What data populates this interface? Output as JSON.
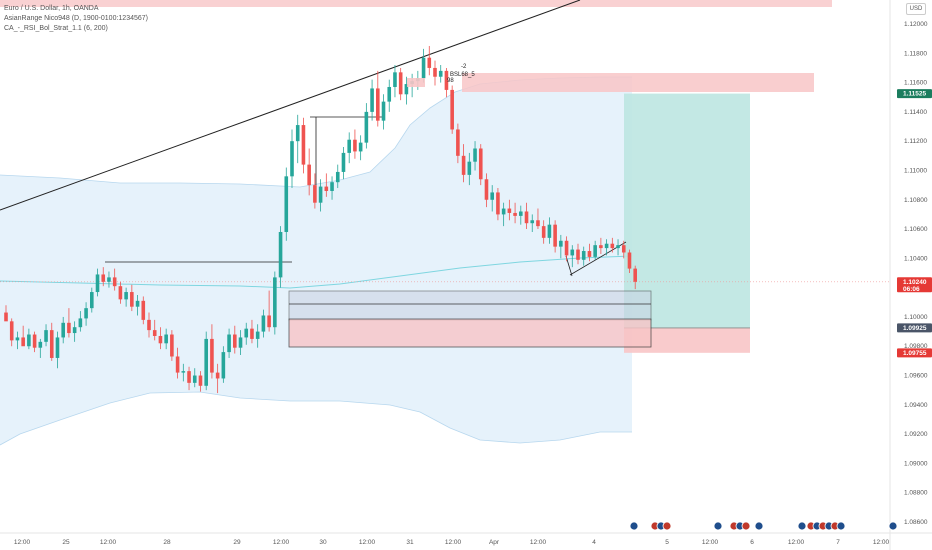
{
  "legend": {
    "symbol": "Euro / U.S. Dollar, 1h, OANDA",
    "indicator1": "AsianRange Nico948 (D, 1900-0100:1234567)",
    "indicator2": "CA_-_RSI_Bol_Strat_1.1 (6, 200)"
  },
  "currency_label": "USD",
  "chart_data": {
    "type": "candlestick",
    "instrument": "EURUSD",
    "timeframe": "1h",
    "ylim": [
      1.0855,
      1.1215
    ],
    "y_ticks": [
      1.12,
      1.118,
      1.116,
      1.114,
      1.112,
      1.11,
      1.108,
      1.106,
      1.104,
      1.102,
      1.1,
      1.098,
      1.096,
      1.094,
      1.092,
      1.09,
      1.088,
      1.086
    ],
    "y_tick_labels": [
      "1.12000",
      "1.11800",
      "1.11600",
      "1.11400",
      "1.11200",
      "1.11000",
      "1.10800",
      "1.10600",
      "1.10400",
      "1.10200",
      "1.10000",
      "1.09800",
      "1.09600",
      "1.09400",
      "1.09200",
      "1.09000",
      "1.08800",
      "1.08600"
    ],
    "x_tick_labels": [
      "12:00",
      "25",
      "12:00",
      "28",
      "29",
      "12:00",
      "30",
      "12:00",
      "31",
      "12:00",
      "Apr",
      "12:00",
      "4",
      "5",
      "12:00",
      "6",
      "12:00",
      "7",
      "12:00"
    ],
    "price_tags": [
      {
        "label": "1.11525",
        "color": "#1b7d5e",
        "price": 1.11525
      },
      {
        "label": "1.10240",
        "sub": "06:06",
        "color": "#e53935",
        "price": 1.1024
      },
      {
        "label": "1.09925",
        "color": "#4a5568",
        "price": 1.09925
      },
      {
        "label": "1.09755",
        "color": "#e53935",
        "price": 1.09755
      }
    ],
    "annotations": [
      "-2",
      "BSL68_5",
      "98"
    ],
    "position": {
      "entry": 1.09925,
      "target": 1.11525,
      "stop": 1.09755
    },
    "colors": {
      "up": "#26a69a",
      "down": "#ef5350",
      "band": "#ddeefa",
      "midline": "#7fd6e0",
      "target_zone": "#bde6e1",
      "stop_zone": "#f8c5c7"
    },
    "candles": [
      {
        "t": 0,
        "o": 1.1003,
        "h": 1.1008,
        "l": 1.0998,
        "c": 1.0997
      },
      {
        "t": 1,
        "o": 1.0997,
        "h": 1.0999,
        "l": 1.098,
        "c": 1.0984
      },
      {
        "t": 2,
        "o": 1.0984,
        "h": 1.099,
        "l": 1.0978,
        "c": 1.0986
      },
      {
        "t": 3,
        "o": 1.0986,
        "h": 1.0994,
        "l": 1.0982,
        "c": 1.098
      },
      {
        "t": 4,
        "o": 1.098,
        "h": 1.0992,
        "l": 1.0978,
        "c": 1.0988
      },
      {
        "t": 5,
        "o": 1.0988,
        "h": 1.099,
        "l": 1.0976,
        "c": 1.0979
      },
      {
        "t": 6,
        "o": 1.0979,
        "h": 1.0985,
        "l": 1.0972,
        "c": 1.0983
      },
      {
        "t": 7,
        "o": 1.0983,
        "h": 1.0995,
        "l": 1.098,
        "c": 1.0991
      },
      {
        "t": 8,
        "o": 1.0991,
        "h": 1.0996,
        "l": 1.097,
        "c": 1.0972
      },
      {
        "t": 9,
        "o": 1.0972,
        "h": 1.099,
        "l": 1.0965,
        "c": 1.0986
      },
      {
        "t": 10,
        "o": 1.0986,
        "h": 1.1,
        "l": 1.0982,
        "c": 1.0996
      },
      {
        "t": 11,
        "o": 1.0996,
        "h": 1.1006,
        "l": 1.0986,
        "c": 1.0989
      },
      {
        "t": 12,
        "o": 1.0989,
        "h": 1.0997,
        "l": 1.0983,
        "c": 1.0993
      },
      {
        "t": 13,
        "o": 1.0993,
        "h": 1.1004,
        "l": 1.099,
        "c": 1.0999
      },
      {
        "t": 14,
        "o": 1.0999,
        "h": 1.101,
        "l": 1.0994,
        "c": 1.1006
      },
      {
        "t": 15,
        "o": 1.1006,
        "h": 1.102,
        "l": 1.1003,
        "c": 1.1017
      },
      {
        "t": 16,
        "o": 1.1017,
        "h": 1.1033,
        "l": 1.1014,
        "c": 1.1029
      },
      {
        "t": 17,
        "o": 1.1029,
        "h": 1.1034,
        "l": 1.1021,
        "c": 1.1024
      },
      {
        "t": 18,
        "o": 1.1024,
        "h": 1.1031,
        "l": 1.102,
        "c": 1.1027
      },
      {
        "t": 19,
        "o": 1.1027,
        "h": 1.1033,
        "l": 1.1018,
        "c": 1.1021
      },
      {
        "t": 20,
        "o": 1.1021,
        "h": 1.1024,
        "l": 1.1009,
        "c": 1.1012
      },
      {
        "t": 21,
        "o": 1.1012,
        "h": 1.102,
        "l": 1.1007,
        "c": 1.1017
      },
      {
        "t": 22,
        "o": 1.1017,
        "h": 1.1022,
        "l": 1.1004,
        "c": 1.1007
      },
      {
        "t": 23,
        "o": 1.1007,
        "h": 1.1015,
        "l": 1.1001,
        "c": 1.1011
      },
      {
        "t": 24,
        "o": 1.1011,
        "h": 1.1014,
        "l": 1.0995,
        "c": 1.0998
      },
      {
        "t": 25,
        "o": 1.0998,
        "h": 1.1003,
        "l": 1.0986,
        "c": 1.0991
      },
      {
        "t": 26,
        "o": 1.0991,
        "h": 1.0998,
        "l": 1.0984,
        "c": 1.0987
      },
      {
        "t": 27,
        "o": 1.0987,
        "h": 1.0993,
        "l": 1.0978,
        "c": 1.0982
      },
      {
        "t": 28,
        "o": 1.0982,
        "h": 1.0992,
        "l": 1.0978,
        "c": 1.0988
      },
      {
        "t": 29,
        "o": 1.0988,
        "h": 1.0991,
        "l": 1.097,
        "c": 1.0973
      },
      {
        "t": 30,
        "o": 1.0973,
        "h": 1.0979,
        "l": 1.0958,
        "c": 1.0962
      },
      {
        "t": 31,
        "o": 1.0962,
        "h": 1.0968,
        "l": 1.0956,
        "c": 1.0963
      },
      {
        "t": 32,
        "o": 1.0963,
        "h": 1.0966,
        "l": 1.095,
        "c": 1.0955
      },
      {
        "t": 33,
        "o": 1.0955,
        "h": 1.0965,
        "l": 1.0952,
        "c": 1.096
      },
      {
        "t": 34,
        "o": 1.096,
        "h": 1.0963,
        "l": 1.0949,
        "c": 1.0953
      },
      {
        "t": 35,
        "o": 1.0953,
        "h": 1.099,
        "l": 1.095,
        "c": 1.0985
      },
      {
        "t": 36,
        "o": 1.0985,
        "h": 1.0995,
        "l": 1.0958,
        "c": 1.0962
      },
      {
        "t": 37,
        "o": 1.0962,
        "h": 1.0968,
        "l": 1.0948,
        "c": 1.0958
      },
      {
        "t": 38,
        "o": 1.0958,
        "h": 1.098,
        "l": 1.0955,
        "c": 1.0976
      },
      {
        "t": 39,
        "o": 1.0976,
        "h": 1.0992,
        "l": 1.0972,
        "c": 1.0988
      },
      {
        "t": 40,
        "o": 1.0988,
        "h": 1.0994,
        "l": 1.0975,
        "c": 1.0979
      },
      {
        "t": 41,
        "o": 1.0979,
        "h": 1.0991,
        "l": 1.0974,
        "c": 1.0986
      },
      {
        "t": 42,
        "o": 1.0986,
        "h": 1.0996,
        "l": 1.0981,
        "c": 1.0992
      },
      {
        "t": 43,
        "o": 1.0992,
        "h": 1.0998,
        "l": 1.0982,
        "c": 1.0985
      },
      {
        "t": 44,
        "o": 1.0985,
        "h": 1.0995,
        "l": 1.0979,
        "c": 1.099
      },
      {
        "t": 45,
        "o": 1.099,
        "h": 1.1005,
        "l": 1.0986,
        "c": 1.1001
      },
      {
        "t": 46,
        "o": 1.1001,
        "h": 1.1018,
        "l": 1.099,
        "c": 1.0993
      },
      {
        "t": 47,
        "o": 1.0993,
        "h": 1.1031,
        "l": 1.0988,
        "c": 1.1027
      },
      {
        "t": 48,
        "o": 1.1027,
        "h": 1.1062,
        "l": 1.102,
        "c": 1.1058
      },
      {
        "t": 49,
        "o": 1.1058,
        "h": 1.1102,
        "l": 1.1052,
        "c": 1.1096
      },
      {
        "t": 50,
        "o": 1.1096,
        "h": 1.1128,
        "l": 1.1088,
        "c": 1.112
      },
      {
        "t": 51,
        "o": 1.112,
        "h": 1.1138,
        "l": 1.1105,
        "c": 1.1131
      },
      {
        "t": 52,
        "o": 1.1131,
        "h": 1.1136,
        "l": 1.1098,
        "c": 1.1104
      },
      {
        "t": 53,
        "o": 1.1104,
        "h": 1.1115,
        "l": 1.1083,
        "c": 1.109
      },
      {
        "t": 54,
        "o": 1.109,
        "h": 1.1098,
        "l": 1.1074,
        "c": 1.1078
      },
      {
        "t": 55,
        "o": 1.1078,
        "h": 1.1094,
        "l": 1.1072,
        "c": 1.1089
      },
      {
        "t": 56,
        "o": 1.1089,
        "h": 1.1098,
        "l": 1.1082,
        "c": 1.1086
      },
      {
        "t": 57,
        "o": 1.1086,
        "h": 1.1096,
        "l": 1.108,
        "c": 1.1092
      },
      {
        "t": 58,
        "o": 1.1092,
        "h": 1.1104,
        "l": 1.1088,
        "c": 1.1099
      },
      {
        "t": 59,
        "o": 1.1099,
        "h": 1.1116,
        "l": 1.1094,
        "c": 1.1112
      },
      {
        "t": 60,
        "o": 1.1112,
        "h": 1.1126,
        "l": 1.1105,
        "c": 1.1121
      },
      {
        "t": 61,
        "o": 1.1121,
        "h": 1.1128,
        "l": 1.1108,
        "c": 1.1113
      },
      {
        "t": 62,
        "o": 1.1113,
        "h": 1.1124,
        "l": 1.1107,
        "c": 1.1119
      },
      {
        "t": 63,
        "o": 1.1119,
        "h": 1.1146,
        "l": 1.1115,
        "c": 1.114
      },
      {
        "t": 64,
        "o": 1.114,
        "h": 1.1162,
        "l": 1.1134,
        "c": 1.1156
      },
      {
        "t": 65,
        "o": 1.1156,
        "h": 1.1168,
        "l": 1.113,
        "c": 1.1134
      },
      {
        "t": 66,
        "o": 1.1134,
        "h": 1.1152,
        "l": 1.1128,
        "c": 1.1147
      },
      {
        "t": 67,
        "o": 1.1147,
        "h": 1.1162,
        "l": 1.114,
        "c": 1.1157
      },
      {
        "t": 68,
        "o": 1.1157,
        "h": 1.1172,
        "l": 1.115,
        "c": 1.1167
      },
      {
        "t": 69,
        "o": 1.1167,
        "h": 1.117,
        "l": 1.1148,
        "c": 1.1152
      },
      {
        "t": 70,
        "o": 1.1152,
        "h": 1.1164,
        "l": 1.1145,
        "c": 1.1159
      },
      {
        "t": 71,
        "o": 1.1159,
        "h": 1.1166,
        "l": 1.115,
        "c": 1.1161
      },
      {
        "t": 72,
        "o": 1.1161,
        "h": 1.1168,
        "l": 1.1155,
        "c": 1.1163
      },
      {
        "t": 73,
        "o": 1.1163,
        "h": 1.1183,
        "l": 1.116,
        "c": 1.1177
      },
      {
        "t": 74,
        "o": 1.1177,
        "h": 1.1185,
        "l": 1.1165,
        "c": 1.117
      },
      {
        "t": 75,
        "o": 1.117,
        "h": 1.1175,
        "l": 1.1158,
        "c": 1.1164
      },
      {
        "t": 76,
        "o": 1.1164,
        "h": 1.1172,
        "l": 1.116,
        "c": 1.1168
      },
      {
        "t": 77,
        "o": 1.1168,
        "h": 1.117,
        "l": 1.115,
        "c": 1.1155
      },
      {
        "t": 78,
        "o": 1.1155,
        "h": 1.1158,
        "l": 1.1125,
        "c": 1.1128
      },
      {
        "t": 79,
        "o": 1.1128,
        "h": 1.1132,
        "l": 1.1105,
        "c": 1.111
      },
      {
        "t": 80,
        "o": 1.111,
        "h": 1.1118,
        "l": 1.1092,
        "c": 1.1097
      },
      {
        "t": 81,
        "o": 1.1097,
        "h": 1.1112,
        "l": 1.109,
        "c": 1.1106
      },
      {
        "t": 82,
        "o": 1.1106,
        "h": 1.112,
        "l": 1.11,
        "c": 1.1115
      },
      {
        "t": 83,
        "o": 1.1115,
        "h": 1.1118,
        "l": 1.109,
        "c": 1.1094
      },
      {
        "t": 84,
        "o": 1.1094,
        "h": 1.1098,
        "l": 1.1075,
        "c": 1.108
      },
      {
        "t": 85,
        "o": 1.108,
        "h": 1.109,
        "l": 1.1072,
        "c": 1.1085
      },
      {
        "t": 86,
        "o": 1.1085,
        "h": 1.1088,
        "l": 1.1066,
        "c": 1.107
      },
      {
        "t": 87,
        "o": 1.107,
        "h": 1.1078,
        "l": 1.1062,
        "c": 1.1074
      },
      {
        "t": 88,
        "o": 1.1074,
        "h": 1.108,
        "l": 1.1066,
        "c": 1.1071
      },
      {
        "t": 89,
        "o": 1.1071,
        "h": 1.1078,
        "l": 1.1064,
        "c": 1.1069
      },
      {
        "t": 90,
        "o": 1.1069,
        "h": 1.1076,
        "l": 1.1063,
        "c": 1.1072
      },
      {
        "t": 91,
        "o": 1.1072,
        "h": 1.1078,
        "l": 1.106,
        "c": 1.1064
      },
      {
        "t": 92,
        "o": 1.1064,
        "h": 1.107,
        "l": 1.1058,
        "c": 1.1066
      },
      {
        "t": 93,
        "o": 1.1066,
        "h": 1.1074,
        "l": 1.106,
        "c": 1.1062
      },
      {
        "t": 94,
        "o": 1.1062,
        "h": 1.1066,
        "l": 1.105,
        "c": 1.1054
      },
      {
        "t": 95,
        "o": 1.1054,
        "h": 1.1068,
        "l": 1.105,
        "c": 1.1063
      },
      {
        "t": 96,
        "o": 1.1063,
        "h": 1.1066,
        "l": 1.1044,
        "c": 1.1048
      },
      {
        "t": 97,
        "o": 1.1048,
        "h": 1.1056,
        "l": 1.104,
        "c": 1.1052
      },
      {
        "t": 98,
        "o": 1.1052,
        "h": 1.1055,
        "l": 1.1038,
        "c": 1.1042
      },
      {
        "t": 99,
        "o": 1.1042,
        "h": 1.1049,
        "l": 1.1034,
        "c": 1.1046
      },
      {
        "t": 100,
        "o": 1.1046,
        "h": 1.105,
        "l": 1.1036,
        "c": 1.1039
      },
      {
        "t": 101,
        "o": 1.1039,
        "h": 1.1048,
        "l": 1.1035,
        "c": 1.1045
      },
      {
        "t": 102,
        "o": 1.1045,
        "h": 1.105,
        "l": 1.1038,
        "c": 1.1041
      },
      {
        "t": 103,
        "o": 1.1041,
        "h": 1.1052,
        "l": 1.1039,
        "c": 1.1049
      },
      {
        "t": 104,
        "o": 1.1049,
        "h": 1.1054,
        "l": 1.1043,
        "c": 1.1047
      },
      {
        "t": 105,
        "o": 1.1047,
        "h": 1.1053,
        "l": 1.1042,
        "c": 1.105
      },
      {
        "t": 106,
        "o": 1.105,
        "h": 1.1054,
        "l": 1.1044,
        "c": 1.1047
      },
      {
        "t": 107,
        "o": 1.1047,
        "h": 1.1053,
        "l": 1.1042,
        "c": 1.1049
      },
      {
        "t": 108,
        "o": 1.1049,
        "h": 1.1052,
        "l": 1.104,
        "c": 1.1044
      },
      {
        "t": 109,
        "o": 1.1044,
        "h": 1.1046,
        "l": 1.103,
        "c": 1.1033
      },
      {
        "t": 110,
        "o": 1.1033,
        "h": 1.1035,
        "l": 1.1019,
        "c": 1.1024
      }
    ]
  }
}
